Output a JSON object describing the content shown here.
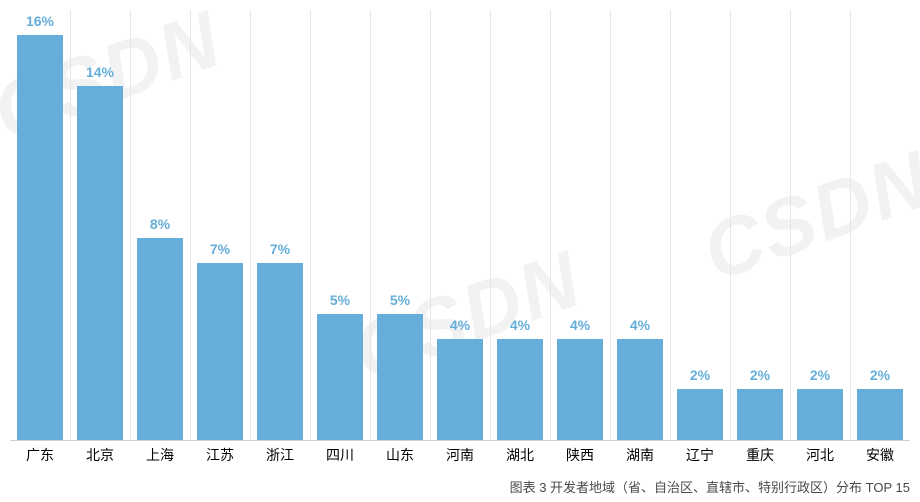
{
  "watermark_text": "CSDN",
  "chart": {
    "type": "bar",
    "categories": [
      "广东",
      "北京",
      "上海",
      "江苏",
      "浙江",
      "四川",
      "山东",
      "河南",
      "湖北",
      "陕西",
      "湖南",
      "辽宁",
      "重庆",
      "河北",
      "安徽"
    ],
    "values": [
      16,
      14,
      8,
      7,
      7,
      5,
      5,
      4,
      4,
      4,
      4,
      2,
      2,
      2,
      2
    ],
    "value_suffix": "%",
    "bar_color": "#65aed9",
    "label_color": "#65aed9",
    "ylim": [
      0,
      17
    ],
    "background_color": "#ffffff",
    "grid_color": "#e6e6e6",
    "label_fontsize": 14,
    "axis_label_color": "#000000",
    "bar_width": 0.76,
    "watermark_color": "#f2f2f2"
  },
  "caption": "图表 3  开发者地域（省、自治区、直辖市、特别行政区）分布 TOP 15"
}
